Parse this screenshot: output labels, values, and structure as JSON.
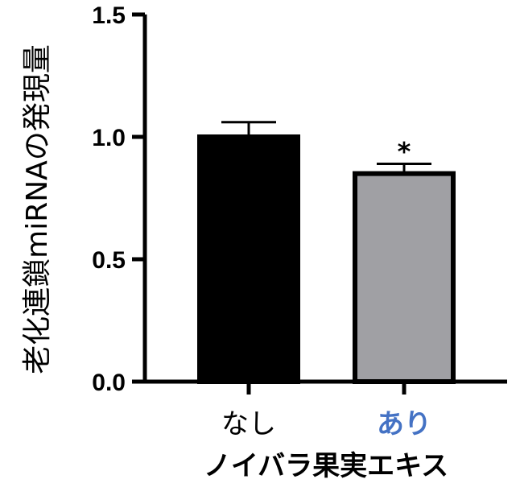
{
  "chart_data": {
    "type": "bar",
    "categories": [
      "なし",
      "あり"
    ],
    "values": [
      1.0,
      0.85
    ],
    "errors": [
      0.06,
      0.04
    ],
    "significance": [
      "",
      "*"
    ],
    "bar_colors": [
      "#000000",
      "#a0a0a4"
    ],
    "bar_edge_color": "#000000",
    "category_label_colors": [
      "#000000",
      "#4472c4"
    ],
    "title": "",
    "xlabel": "ノイバラ果実エキス",
    "ylabel": "老化連鎖miRNAの発現量",
    "ylim": [
      0,
      1.5
    ],
    "yticks": [
      "0.0",
      "0.5",
      "1.0",
      "1.5"
    ],
    "grid": false,
    "legend": "none"
  }
}
